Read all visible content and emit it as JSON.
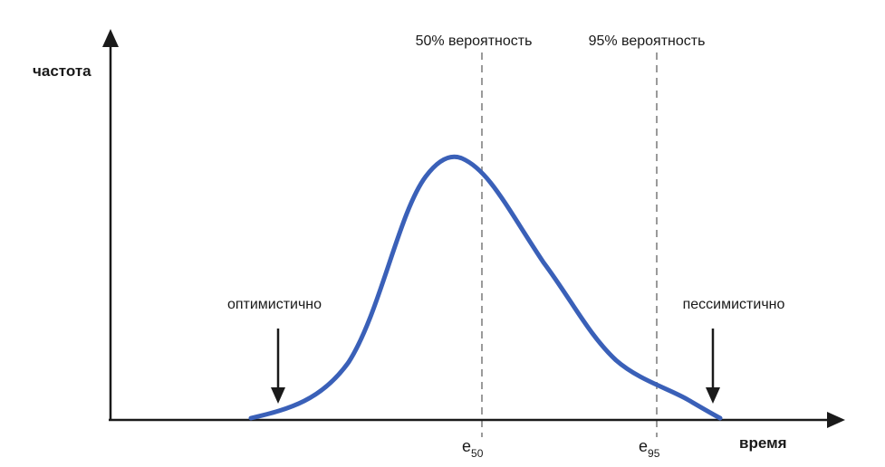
{
  "axes": {
    "y_label": "частота",
    "x_label": "время"
  },
  "markers": {
    "p50_label": "50% вероятность",
    "p95_label": "95% вероятность",
    "e50_base": "e",
    "e50_sub": "50",
    "e95_base": "e",
    "e95_sub": "95"
  },
  "annotations": {
    "optimistic": "оптимистично",
    "pessimistic": "пессимистично"
  },
  "colors": {
    "curve": "#3a60b8",
    "axis": "#1a1a1a",
    "dashed": "#9a9a9a",
    "text": "#1a1a1a"
  },
  "icons": {
    "axis_arrows": "arrowhead",
    "pointers": "down-arrow"
  }
}
